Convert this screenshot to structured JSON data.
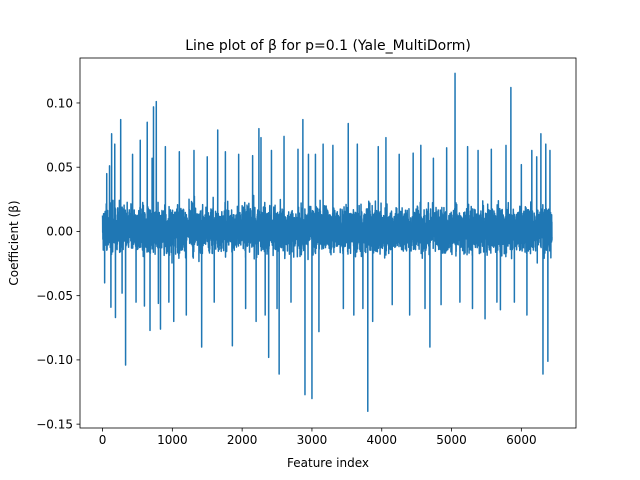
{
  "chart_data": {
    "type": "line",
    "title": "Line plot of β for p=0.1 (Yale_MultiDorm)",
    "xlabel": "Feature index",
    "ylabel": "Coefficient (β)",
    "xlim": [
      -323,
      6783
    ],
    "ylim": [
      -0.153,
      0.135
    ],
    "x_ticks": [
      0,
      1000,
      2000,
      3000,
      4000,
      5000,
      6000
    ],
    "x_tick_labels": [
      "0",
      "1000",
      "2000",
      "3000",
      "4000",
      "5000",
      "6000"
    ],
    "y_ticks": [
      -0.15,
      -0.1,
      -0.05,
      0.0,
      0.05,
      0.1
    ],
    "y_tick_labels": [
      "−0.15",
      "−0.10",
      "−0.05",
      "0.00",
      "0.05",
      "0.10"
    ],
    "grid": false,
    "series": [
      {
        "color": "#1f77b4",
        "n_points": 6440,
        "typical_band": [
          -0.045,
          0.048
        ],
        "spikes": [
          {
            "x": 30,
            "y": -0.04
          },
          {
            "x": 60,
            "y": 0.045
          },
          {
            "x": 100,
            "y": 0.051
          },
          {
            "x": 120,
            "y": -0.059
          },
          {
            "x": 130,
            "y": 0.076
          },
          {
            "x": 175,
            "y": 0.068
          },
          {
            "x": 185,
            "y": -0.067
          },
          {
            "x": 260,
            "y": 0.087
          },
          {
            "x": 280,
            "y": -0.048
          },
          {
            "x": 330,
            "y": -0.104
          },
          {
            "x": 430,
            "y": 0.06
          },
          {
            "x": 480,
            "y": -0.055
          },
          {
            "x": 540,
            "y": 0.071
          },
          {
            "x": 600,
            "y": -0.058
          },
          {
            "x": 640,
            "y": 0.085
          },
          {
            "x": 680,
            "y": -0.077
          },
          {
            "x": 710,
            "y": 0.057
          },
          {
            "x": 730,
            "y": 0.097
          },
          {
            "x": 770,
            "y": 0.101
          },
          {
            "x": 800,
            "y": -0.056
          },
          {
            "x": 830,
            "y": -0.076
          },
          {
            "x": 900,
            "y": 0.066
          },
          {
            "x": 950,
            "y": -0.055
          },
          {
            "x": 1020,
            "y": -0.07
          },
          {
            "x": 1100,
            "y": 0.062
          },
          {
            "x": 1200,
            "y": -0.065
          },
          {
            "x": 1310,
            "y": 0.063
          },
          {
            "x": 1420,
            "y": -0.09
          },
          {
            "x": 1500,
            "y": 0.058
          },
          {
            "x": 1600,
            "y": -0.055
          },
          {
            "x": 1650,
            "y": 0.079
          },
          {
            "x": 1760,
            "y": 0.062
          },
          {
            "x": 1860,
            "y": -0.089
          },
          {
            "x": 1950,
            "y": 0.06
          },
          {
            "x": 2050,
            "y": -0.06
          },
          {
            "x": 2150,
            "y": 0.059
          },
          {
            "x": 2200,
            "y": -0.07
          },
          {
            "x": 2240,
            "y": 0.08
          },
          {
            "x": 2270,
            "y": 0.073
          },
          {
            "x": 2330,
            "y": -0.065
          },
          {
            "x": 2380,
            "y": -0.098
          },
          {
            "x": 2420,
            "y": 0.063
          },
          {
            "x": 2500,
            "y": -0.06
          },
          {
            "x": 2530,
            "y": -0.111
          },
          {
            "x": 2600,
            "y": 0.074
          },
          {
            "x": 2700,
            "y": -0.055
          },
          {
            "x": 2800,
            "y": 0.064
          },
          {
            "x": 2870,
            "y": 0.087
          },
          {
            "x": 2900,
            "y": -0.127
          },
          {
            "x": 2950,
            "y": 0.06
          },
          {
            "x": 3000,
            "y": -0.13
          },
          {
            "x": 3050,
            "y": 0.06
          },
          {
            "x": 3100,
            "y": -0.078
          },
          {
            "x": 3160,
            "y": 0.068
          },
          {
            "x": 3300,
            "y": 0.067
          },
          {
            "x": 3450,
            "y": -0.06
          },
          {
            "x": 3520,
            "y": 0.084
          },
          {
            "x": 3600,
            "y": -0.065
          },
          {
            "x": 3650,
            "y": 0.068
          },
          {
            "x": 3730,
            "y": -0.06
          },
          {
            "x": 3800,
            "y": -0.14
          },
          {
            "x": 3870,
            "y": -0.07
          },
          {
            "x": 3950,
            "y": 0.066
          },
          {
            "x": 4060,
            "y": 0.073
          },
          {
            "x": 4150,
            "y": -0.057
          },
          {
            "x": 4250,
            "y": 0.06
          },
          {
            "x": 4400,
            "y": -0.065
          },
          {
            "x": 4450,
            "y": 0.061
          },
          {
            "x": 4560,
            "y": 0.067
          },
          {
            "x": 4620,
            "y": -0.06
          },
          {
            "x": 4690,
            "y": -0.09
          },
          {
            "x": 4740,
            "y": 0.057
          },
          {
            "x": 4850,
            "y": -0.057
          },
          {
            "x": 4930,
            "y": 0.065
          },
          {
            "x": 5050,
            "y": 0.123
          },
          {
            "x": 5120,
            "y": -0.055
          },
          {
            "x": 5230,
            "y": 0.066
          },
          {
            "x": 5300,
            "y": -0.06
          },
          {
            "x": 5380,
            "y": 0.063
          },
          {
            "x": 5480,
            "y": -0.068
          },
          {
            "x": 5570,
            "y": 0.064
          },
          {
            "x": 5650,
            "y": -0.055
          },
          {
            "x": 5700,
            "y": -0.061
          },
          {
            "x": 5780,
            "y": 0.067
          },
          {
            "x": 5850,
            "y": 0.112
          },
          {
            "x": 5900,
            "y": -0.055
          },
          {
            "x": 6000,
            "y": 0.052
          },
          {
            "x": 6080,
            "y": -0.065
          },
          {
            "x": 6150,
            "y": 0.063
          },
          {
            "x": 6220,
            "y": 0.058
          },
          {
            "x": 6280,
            "y": 0.076
          },
          {
            "x": 6310,
            "y": -0.111
          },
          {
            "x": 6350,
            "y": 0.068
          },
          {
            "x": 6380,
            "y": -0.101
          },
          {
            "x": 6410,
            "y": 0.063
          },
          {
            "x": 6430,
            "y": 0.0
          }
        ]
      }
    ]
  }
}
